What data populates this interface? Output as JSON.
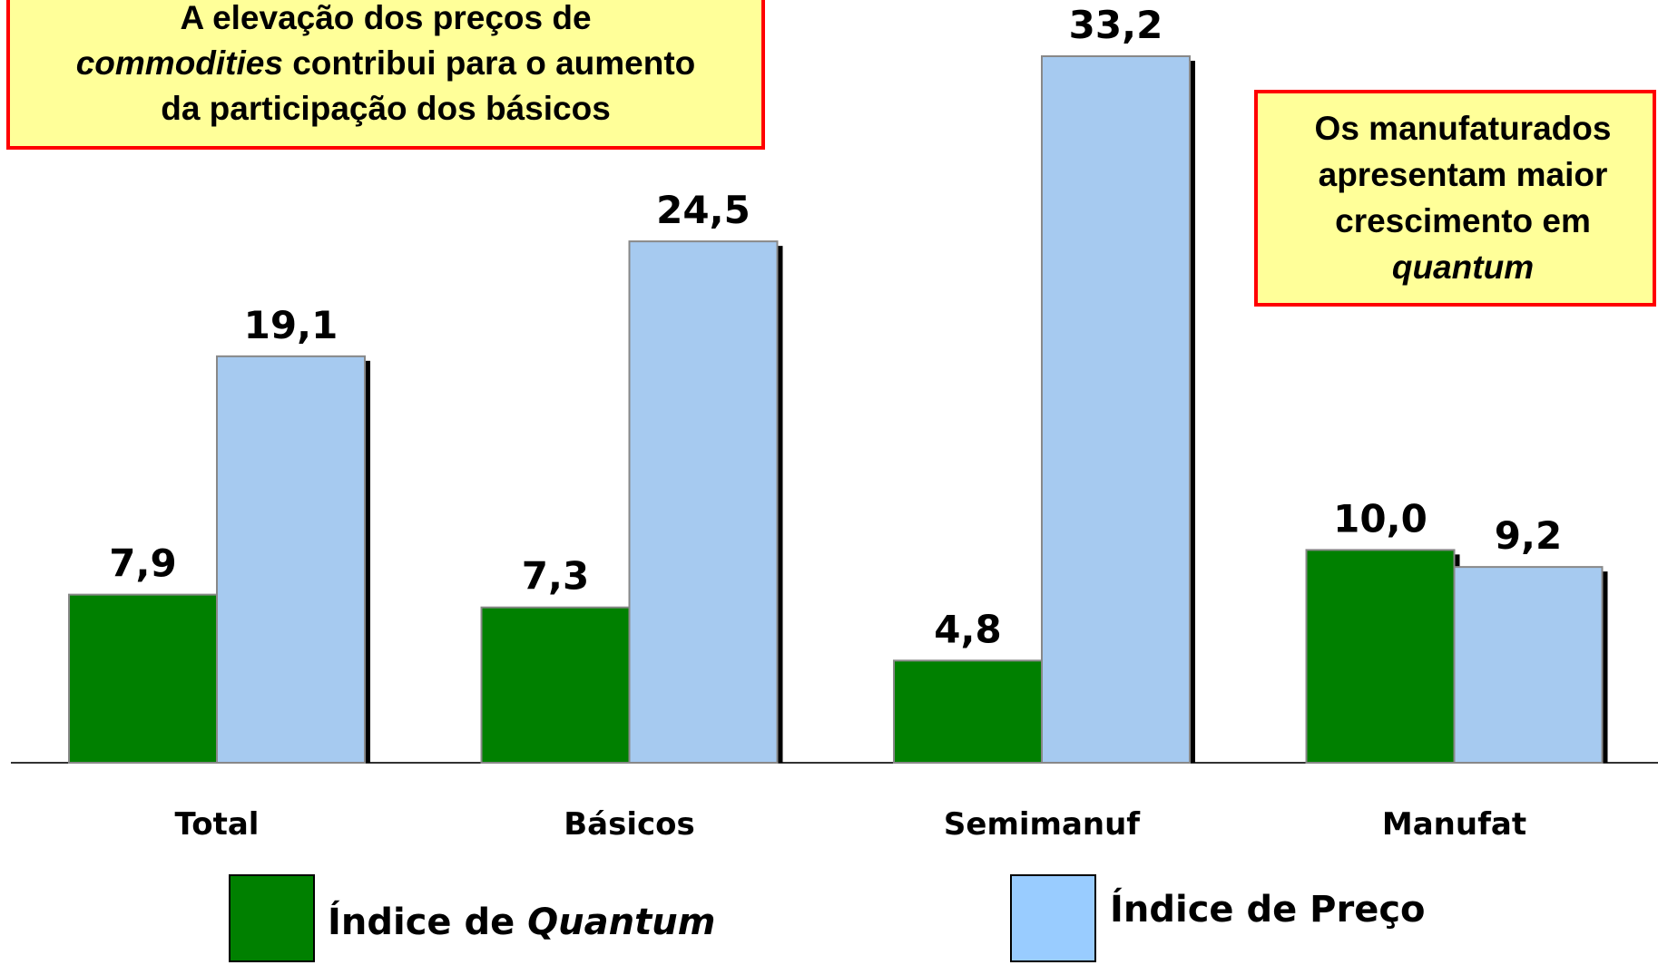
{
  "chart_data": {
    "type": "bar",
    "categories": [
      "Total",
      "Básicos",
      "Semimanuf",
      "Manufat"
    ],
    "series": [
      {
        "name": "Índice de Quantum",
        "italic": "Quantum",
        "color": "#008000",
        "values": [
          7.9,
          7.3,
          4.8,
          10.0
        ],
        "value_labels": [
          "7,9",
          "7,3",
          "4,8",
          "10,0"
        ]
      },
      {
        "name": "Índice de Preço",
        "color": "#a6caf0",
        "values": [
          19.1,
          24.5,
          33.2,
          9.2
        ],
        "value_labels": [
          "19,1",
          "24,5",
          "33,2",
          "9,2"
        ]
      }
    ],
    "annotations": [
      {
        "lines": [
          [
            {
              "text": "A elevação dos preços de"
            }
          ],
          [
            {
              "text": "commodities",
              "italic": true
            },
            {
              "text": " contribui para o aumento"
            }
          ],
          [
            {
              "text": "da participação dos básicos"
            }
          ]
        ]
      },
      {
        "lines": [
          [
            {
              "text": "Os manufaturados"
            }
          ],
          [
            {
              "text": "apresentam maior"
            }
          ],
          [
            {
              "text": "crescimento em"
            }
          ],
          [
            {
              "text": "quantum",
              "italic": true
            }
          ]
        ]
      }
    ]
  }
}
